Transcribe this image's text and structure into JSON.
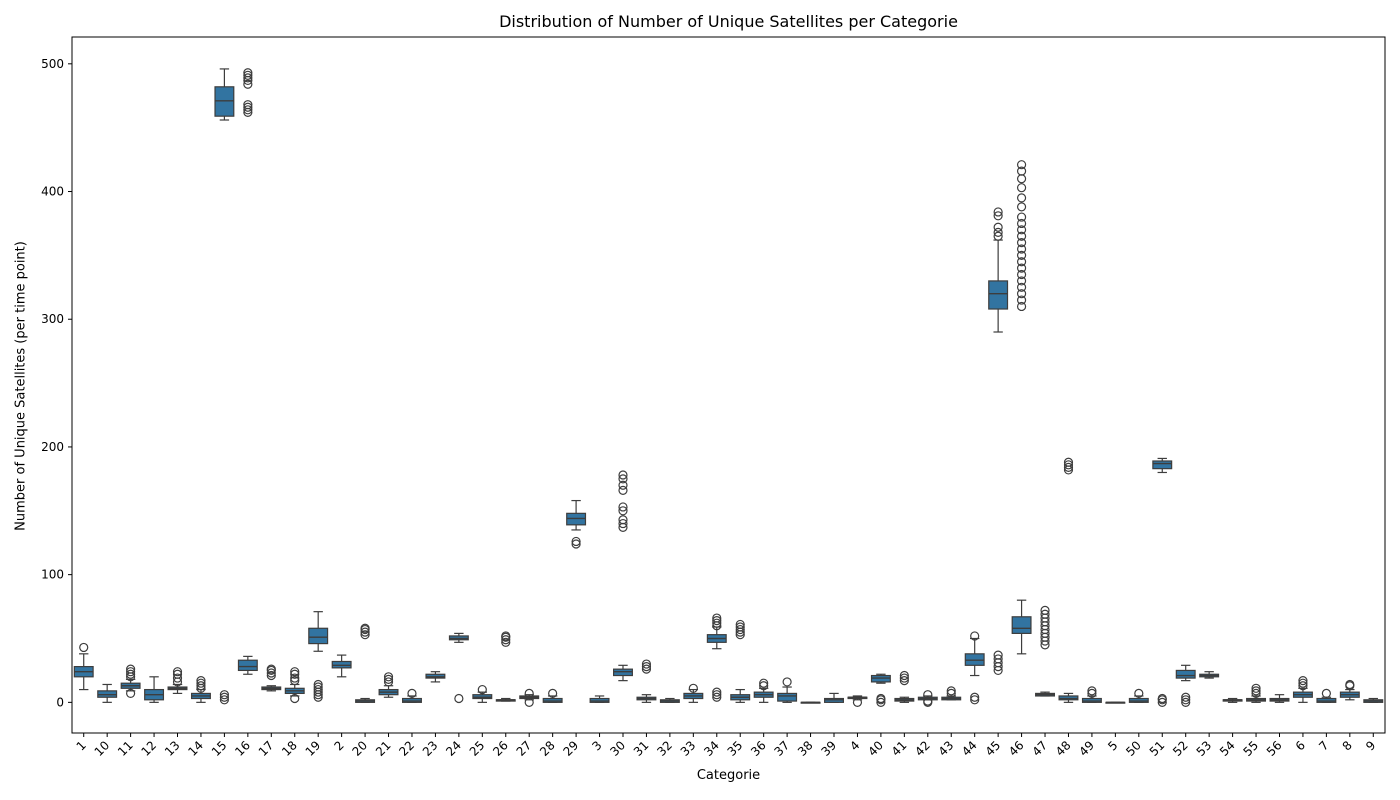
{
  "chart_data": {
    "type": "box",
    "title": "Distribution of Number of Unique Satellites per Categorie",
    "xlabel": "Categorie",
    "ylabel": "Number of Unique Satellites (per time point)",
    "ylim": [
      -24,
      521
    ],
    "yticks": [
      0,
      100,
      200,
      300,
      400,
      500
    ],
    "grid": false,
    "legend": "none",
    "box_color": "#3274a1",
    "edge_color": "#3d3d3d",
    "categories": [
      "1",
      "10",
      "11",
      "12",
      "13",
      "14",
      "15",
      "16",
      "17",
      "18",
      "19",
      "2",
      "20",
      "21",
      "22",
      "23",
      "24",
      "25",
      "26",
      "27",
      "28",
      "29",
      "3",
      "30",
      "31",
      "32",
      "33",
      "34",
      "35",
      "36",
      "37",
      "38",
      "39",
      "4",
      "40",
      "41",
      "42",
      "43",
      "44",
      "45",
      "46",
      "47",
      "48",
      "49",
      "5",
      "50",
      "51",
      "52",
      "53",
      "54",
      "55",
      "56",
      "6",
      "7",
      "8",
      "9"
    ],
    "boxes": [
      {
        "q1": 20,
        "median": 24,
        "q3": 28,
        "wlo": 10,
        "whi": 38,
        "outliers": [
          43
        ]
      },
      {
        "q1": 4,
        "median": 6,
        "q3": 9,
        "wlo": 0,
        "whi": 14,
        "outliers": []
      },
      {
        "q1": 11,
        "median": 13,
        "q3": 15,
        "wlo": 9,
        "whi": 18,
        "outliers": [
          7,
          20,
          22,
          24,
          26
        ]
      },
      {
        "q1": 2,
        "median": 6,
        "q3": 10,
        "wlo": 0,
        "whi": 20,
        "outliers": []
      },
      {
        "q1": 10,
        "median": 11,
        "q3": 12,
        "wlo": 7,
        "whi": 14,
        "outliers": [
          16,
          19,
          22,
          24
        ]
      },
      {
        "q1": 3,
        "median": 5,
        "q3": 7,
        "wlo": 0,
        "whi": 10,
        "outliers": [
          11,
          13,
          15,
          17
        ]
      },
      {
        "q1": 459,
        "median": 471,
        "q3": 482,
        "wlo": 456,
        "whi": 496,
        "outliers": [
          2,
          4,
          6
        ]
      },
      {
        "q1": 25,
        "median": 28,
        "q3": 33,
        "wlo": 22,
        "whi": 36,
        "outliers": [
          462,
          464,
          466,
          468,
          484,
          487,
          489,
          491,
          493
        ]
      },
      {
        "q1": 10,
        "median": 11,
        "q3": 12,
        "wlo": 9,
        "whi": 13,
        "outliers": [
          21,
          23,
          25,
          26
        ]
      },
      {
        "q1": 7,
        "median": 9,
        "q3": 11,
        "wlo": 5,
        "whi": 14,
        "outliers": [
          3,
          17,
          19,
          22,
          24
        ]
      },
      {
        "q1": 46,
        "median": 51,
        "q3": 58,
        "wlo": 40,
        "whi": 71,
        "outliers": [
          4,
          6,
          8,
          10,
          12,
          14
        ]
      },
      {
        "q1": 27,
        "median": 29,
        "q3": 32,
        "wlo": 20,
        "whi": 37,
        "outliers": []
      },
      {
        "q1": 0,
        "median": 1,
        "q3": 2,
        "wlo": 0,
        "whi": 3,
        "outliers": [
          53,
          55,
          57,
          58
        ]
      },
      {
        "q1": 6,
        "median": 8,
        "q3": 10,
        "wlo": 4,
        "whi": 13,
        "outliers": [
          16,
          18,
          20
        ]
      },
      {
        "q1": 0,
        "median": 1,
        "q3": 3,
        "wlo": 0,
        "whi": 5,
        "outliers": [
          7
        ]
      },
      {
        "q1": 19,
        "median": 20,
        "q3": 22,
        "wlo": 16,
        "whi": 24,
        "outliers": []
      },
      {
        "q1": 49,
        "median": 50,
        "q3": 52,
        "wlo": 47,
        "whi": 54,
        "outliers": [
          3
        ]
      },
      {
        "q1": 3,
        "median": 4,
        "q3": 6,
        "wlo": 0,
        "whi": 8,
        "outliers": [
          10
        ]
      },
      {
        "q1": 1,
        "median": 2,
        "q3": 2,
        "wlo": 1,
        "whi": 3,
        "outliers": [
          47,
          49,
          51,
          52
        ]
      },
      {
        "q1": 3,
        "median": 4,
        "q3": 5,
        "wlo": 2,
        "whi": 6,
        "outliers": [
          0,
          7
        ]
      },
      {
        "q1": 0,
        "median": 1,
        "q3": 3,
        "wlo": 0,
        "whi": 5,
        "outliers": [
          7
        ]
      },
      {
        "q1": 139,
        "median": 144,
        "q3": 148,
        "wlo": 135,
        "whi": 158,
        "outliers": [
          124,
          126
        ]
      },
      {
        "q1": 0,
        "median": 1,
        "q3": 3,
        "wlo": 0,
        "whi": 5,
        "outliers": []
      },
      {
        "q1": 21,
        "median": 24,
        "q3": 26,
        "wlo": 17,
        "whi": 29,
        "outliers": [
          137,
          140,
          143,
          150,
          153,
          166,
          170,
          175,
          178
        ]
      },
      {
        "q1": 2,
        "median": 3,
        "q3": 4,
        "wlo": 0,
        "whi": 6,
        "outliers": [
          26,
          28,
          30
        ]
      },
      {
        "q1": 0,
        "median": 1,
        "q3": 2,
        "wlo": 0,
        "whi": 3,
        "outliers": []
      },
      {
        "q1": 3,
        "median": 5,
        "q3": 7,
        "wlo": 0,
        "whi": 10,
        "outliers": [
          11
        ]
      },
      {
        "q1": 47,
        "median": 50,
        "q3": 53,
        "wlo": 42,
        "whi": 59,
        "outliers": [
          4,
          6,
          8,
          60,
          62,
          64,
          66
        ]
      },
      {
        "q1": 2,
        "median": 4,
        "q3": 6,
        "wlo": 0,
        "whi": 10,
        "outliers": [
          53,
          55,
          57,
          59,
          61
        ]
      },
      {
        "q1": 4,
        "median": 6,
        "q3": 8,
        "wlo": 0,
        "whi": 11,
        "outliers": [
          13,
          15
        ]
      },
      {
        "q1": 1,
        "median": 5,
        "q3": 7,
        "wlo": 0,
        "whi": 12,
        "outliers": [
          16
        ]
      },
      {
        "q1": 0,
        "median": 0,
        "q3": 0,
        "wlo": 0,
        "whi": 0,
        "outliers": []
      },
      {
        "q1": 0,
        "median": 2,
        "q3": 3,
        "wlo": 0,
        "whi": 7,
        "outliers": []
      },
      {
        "q1": 3,
        "median": 4,
        "q3": 4,
        "wlo": 2,
        "whi": 5,
        "outliers": [
          0
        ]
      },
      {
        "q1": 16,
        "median": 19,
        "q3": 21,
        "wlo": 15,
        "whi": 22,
        "outliers": [
          0,
          2,
          3
        ]
      },
      {
        "q1": 1,
        "median": 2,
        "q3": 3,
        "wlo": 0,
        "whi": 4,
        "outliers": [
          17,
          19,
          21
        ]
      },
      {
        "q1": 2,
        "median": 3,
        "q3": 4,
        "wlo": 2,
        "whi": 5,
        "outliers": [
          0,
          1,
          6
        ]
      },
      {
        "q1": 2,
        "median": 3,
        "q3": 4,
        "wlo": 2,
        "whi": 5,
        "outliers": [
          7,
          9
        ]
      },
      {
        "q1": 29,
        "median": 33,
        "q3": 38,
        "wlo": 21,
        "whi": 50,
        "outliers": [
          2,
          4,
          52
        ]
      },
      {
        "q1": 308,
        "median": 320,
        "q3": 330,
        "wlo": 290,
        "whi": 362,
        "outliers": [
          25,
          28,
          31,
          34,
          37,
          365,
          368,
          372,
          381,
          384
        ]
      },
      {
        "q1": 54,
        "median": 58,
        "q3": 67,
        "wlo": 38,
        "whi": 80,
        "outliers": [
          310,
          315,
          320,
          325,
          330,
          335,
          340,
          345,
          350,
          355,
          360,
          365,
          370,
          375,
          380,
          388,
          395,
          403,
          410,
          416,
          421
        ]
      },
      {
        "q1": 5,
        "median": 6,
        "q3": 7,
        "wlo": 5,
        "whi": 8,
        "outliers": [
          45,
          48,
          51,
          54,
          57,
          60,
          63,
          66,
          69,
          72
        ]
      },
      {
        "q1": 2,
        "median": 3,
        "q3": 5,
        "wlo": 0,
        "whi": 7,
        "outliers": [
          182,
          184,
          186,
          188
        ]
      },
      {
        "q1": 0,
        "median": 1,
        "q3": 3,
        "wlo": 0,
        "whi": 5,
        "outliers": [
          7,
          9
        ]
      },
      {
        "q1": 0,
        "median": 0,
        "q3": 0,
        "wlo": 0,
        "whi": 0,
        "outliers": []
      },
      {
        "q1": 0,
        "median": 1,
        "q3": 3,
        "wlo": 0,
        "whi": 5,
        "outliers": [
          7
        ]
      },
      {
        "q1": 183,
        "median": 187,
        "q3": 189,
        "wlo": 180,
        "whi": 191,
        "outliers": [
          0,
          2,
          3
        ]
      },
      {
        "q1": 19,
        "median": 21,
        "q3": 25,
        "wlo": 17,
        "whi": 29,
        "outliers": [
          0,
          2,
          4
        ]
      },
      {
        "q1": 20,
        "median": 21,
        "q3": 22,
        "wlo": 19,
        "whi": 24,
        "outliers": []
      },
      {
        "q1": 1,
        "median": 2,
        "q3": 2,
        "wlo": 0,
        "whi": 3,
        "outliers": []
      },
      {
        "q1": 1,
        "median": 2,
        "q3": 3,
        "wlo": 0,
        "whi": 5,
        "outliers": [
          7,
          9,
          11
        ]
      },
      {
        "q1": 1,
        "median": 2,
        "q3": 3,
        "wlo": 0,
        "whi": 6,
        "outliers": []
      },
      {
        "q1": 4,
        "median": 6,
        "q3": 8,
        "wlo": 0,
        "whi": 11,
        "outliers": [
          13,
          15,
          17
        ]
      },
      {
        "q1": 0,
        "median": 1,
        "q3": 3,
        "wlo": 0,
        "whi": 4,
        "outliers": [
          7
        ]
      },
      {
        "q1": 4,
        "median": 6,
        "q3": 8,
        "wlo": 2,
        "whi": 10,
        "outliers": [
          13,
          14
        ]
      },
      {
        "q1": 0,
        "median": 1,
        "q3": 2,
        "wlo": 0,
        "whi": 3,
        "outliers": []
      }
    ]
  }
}
